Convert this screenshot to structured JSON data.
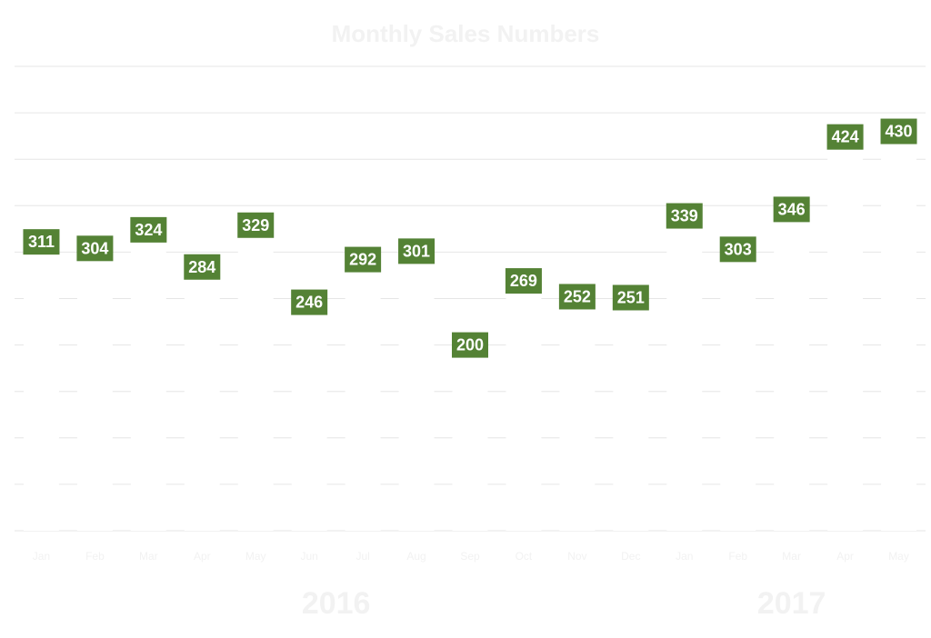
{
  "chart_data": {
    "type": "bar",
    "title": "Monthly Sales Numbers",
    "categories": [
      "Jan",
      "Feb",
      "Mar",
      "Apr",
      "May",
      "Jun",
      "Jul",
      "Aug",
      "Sep",
      "Oct",
      "Nov",
      "Dec",
      "Jan",
      "Feb",
      "Mar",
      "Apr",
      "May"
    ],
    "groups": [
      {
        "label": "2016",
        "start": 0,
        "end": 11
      },
      {
        "label": "2017",
        "start": 12,
        "end": 16
      }
    ],
    "series": [
      {
        "values": [
          311,
          304,
          324,
          284,
          329,
          246,
          292,
          301,
          200,
          269,
          252,
          251,
          339,
          303,
          346,
          424,
          430
        ]
      }
    ],
    "ylim": [
      0,
      500
    ],
    "grid": true,
    "legend": "none",
    "colors": {
      "bar": "#ffffff",
      "label_box": "#548235",
      "label_text": "#ffffff",
      "grid": "#e6e6e6",
      "axis_text": "#f2f2f2"
    }
  }
}
